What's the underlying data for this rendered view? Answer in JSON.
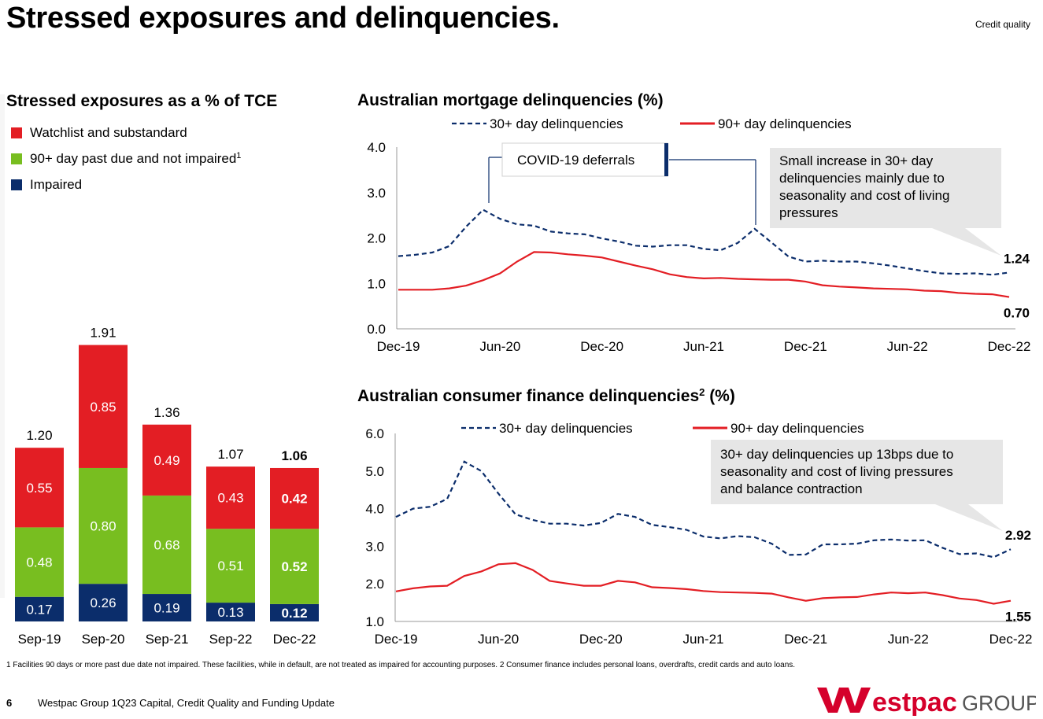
{
  "page": {
    "title": "Stressed exposures and delinquencies.",
    "section": "Credit quality",
    "footnote": "1 Facilities 90 days or more past due date not impaired. These facilities, while in default, are not treated as impaired for accounting purposes. 2 Consumer finance includes personal loans, overdrafts, credit cards and auto loans.",
    "page_number": "6",
    "footer_text": "Westpac Group 1Q23 Capital, Credit Quality and Funding Update",
    "logo_text": "estpac",
    "logo_group": "GROUP",
    "colors": {
      "red": "#e31e24",
      "green": "#78be20",
      "navy": "#0b2d6b",
      "callout": "#e6e6e6"
    }
  },
  "chart_data": [
    {
      "type": "bar",
      "title": "Stressed exposures as a % of TCE",
      "stacked": true,
      "legend": [
        {
          "label": "Watchlist and substandard",
          "sup": "",
          "color": "#e31e24"
        },
        {
          "label": "90+ day past due and not impaired",
          "sup": "1",
          "color": "#78be20"
        },
        {
          "label": "Impaired",
          "sup": "",
          "color": "#0b2d6b"
        }
      ],
      "categories": [
        "Sep-19",
        "Sep-20",
        "Sep-21",
        "Sep-22",
        "Dec-22"
      ],
      "series": [
        {
          "name": "Impaired",
          "values": [
            0.17,
            0.26,
            0.19,
            0.13,
            0.12
          ]
        },
        {
          "name": "90+ day past due and not impaired",
          "values": [
            0.48,
            0.8,
            0.68,
            0.51,
            0.52
          ]
        },
        {
          "name": "Watchlist and substandard",
          "values": [
            0.55,
            0.85,
            0.49,
            0.43,
            0.42
          ]
        }
      ],
      "value_labels": [
        [
          "0.17",
          "0.26",
          "0.19",
          "0.13",
          "0.12"
        ],
        [
          "0.48",
          "0.80",
          "0.68",
          "0.51",
          "0.52"
        ],
        [
          "0.55",
          "0.85",
          "0.49",
          "0.43",
          "0.42"
        ]
      ],
      "totals": [
        "1.20",
        "1.91",
        "1.36",
        "1.07",
        "1.06"
      ],
      "highlight_last": true
    },
    {
      "type": "line",
      "title": "Australian mortgage delinquencies (%)",
      "x_ticks": [
        "Dec-19",
        "Jun-20",
        "Dec-20",
        "Jun-21",
        "Dec-21",
        "Jun-22",
        "Dec-22"
      ],
      "y_ticks": [
        "0.0",
        "1.0",
        "2.0",
        "3.0",
        "4.0"
      ],
      "ylim": [
        0,
        4
      ],
      "series": [
        {
          "name": "30+ day delinquencies",
          "style": "dashed",
          "values": [
            1.6,
            1.63,
            1.68,
            1.82,
            2.25,
            2.62,
            2.42,
            2.3,
            2.27,
            2.14,
            2.1,
            2.08,
            1.99,
            1.92,
            1.83,
            1.81,
            1.84,
            1.84,
            1.76,
            1.73,
            1.89,
            2.2,
            1.9,
            1.59,
            1.48,
            1.5,
            1.48,
            1.48,
            1.44,
            1.39,
            1.33,
            1.27,
            1.22,
            1.21,
            1.22,
            1.19,
            1.24
          ]
        },
        {
          "name": "90+ day delinquencies",
          "style": "solid",
          "values": [
            0.86,
            0.86,
            0.86,
            0.89,
            0.95,
            1.07,
            1.22,
            1.48,
            1.69,
            1.68,
            1.64,
            1.61,
            1.57,
            1.48,
            1.39,
            1.31,
            1.2,
            1.14,
            1.11,
            1.12,
            1.1,
            1.09,
            1.08,
            1.08,
            1.04,
            0.96,
            0.93,
            0.91,
            0.89,
            0.88,
            0.87,
            0.84,
            0.83,
            0.79,
            0.77,
            0.76,
            0.7
          ]
        }
      ],
      "end_labels": [
        "1.24",
        "0.70"
      ],
      "annotation_box": "COVID-19 deferrals",
      "callout": [
        "Small increase in 30+ day",
        "delinquencies mainly due to",
        "seasonality and cost of living",
        "pressures"
      ]
    },
    {
      "type": "line",
      "title": "Australian consumer finance delinquencies",
      "title_sup": "2",
      "title_suffix": " (%)",
      "x_ticks": [
        "Dec-19",
        "Jun-20",
        "Dec-20",
        "Jun-21",
        "Dec-21",
        "Jun-22",
        "Dec-22"
      ],
      "y_ticks": [
        "1.0",
        "2.0",
        "3.0",
        "4.0",
        "5.0",
        "6.0"
      ],
      "ylim": [
        1,
        6
      ],
      "series": [
        {
          "name": "30+ day delinquencies",
          "style": "dashed",
          "values": [
            3.78,
            4.0,
            4.05,
            4.26,
            5.25,
            5.0,
            4.4,
            3.85,
            3.7,
            3.6,
            3.6,
            3.55,
            3.62,
            3.86,
            3.78,
            3.57,
            3.51,
            3.44,
            3.26,
            3.21,
            3.27,
            3.24,
            3.07,
            2.77,
            2.78,
            3.05,
            3.05,
            3.07,
            3.16,
            3.18,
            3.15,
            3.16,
            2.96,
            2.79,
            2.81,
            2.71,
            2.92
          ]
        },
        {
          "name": "90+ day delinquencies",
          "style": "solid",
          "values": [
            1.8,
            1.88,
            1.93,
            1.95,
            2.21,
            2.33,
            2.52,
            2.55,
            2.37,
            2.08,
            2.01,
            1.95,
            1.95,
            2.08,
            2.04,
            1.91,
            1.89,
            1.86,
            1.81,
            1.78,
            1.77,
            1.76,
            1.74,
            1.64,
            1.55,
            1.62,
            1.64,
            1.65,
            1.72,
            1.77,
            1.75,
            1.77,
            1.7,
            1.61,
            1.57,
            1.47,
            1.55
          ]
        }
      ],
      "end_labels": [
        "2.92",
        "1.55"
      ],
      "callout": [
        "30+ day delinquencies up 13bps due to",
        "seasonality and cost of living pressures",
        "and balance contraction"
      ]
    }
  ]
}
